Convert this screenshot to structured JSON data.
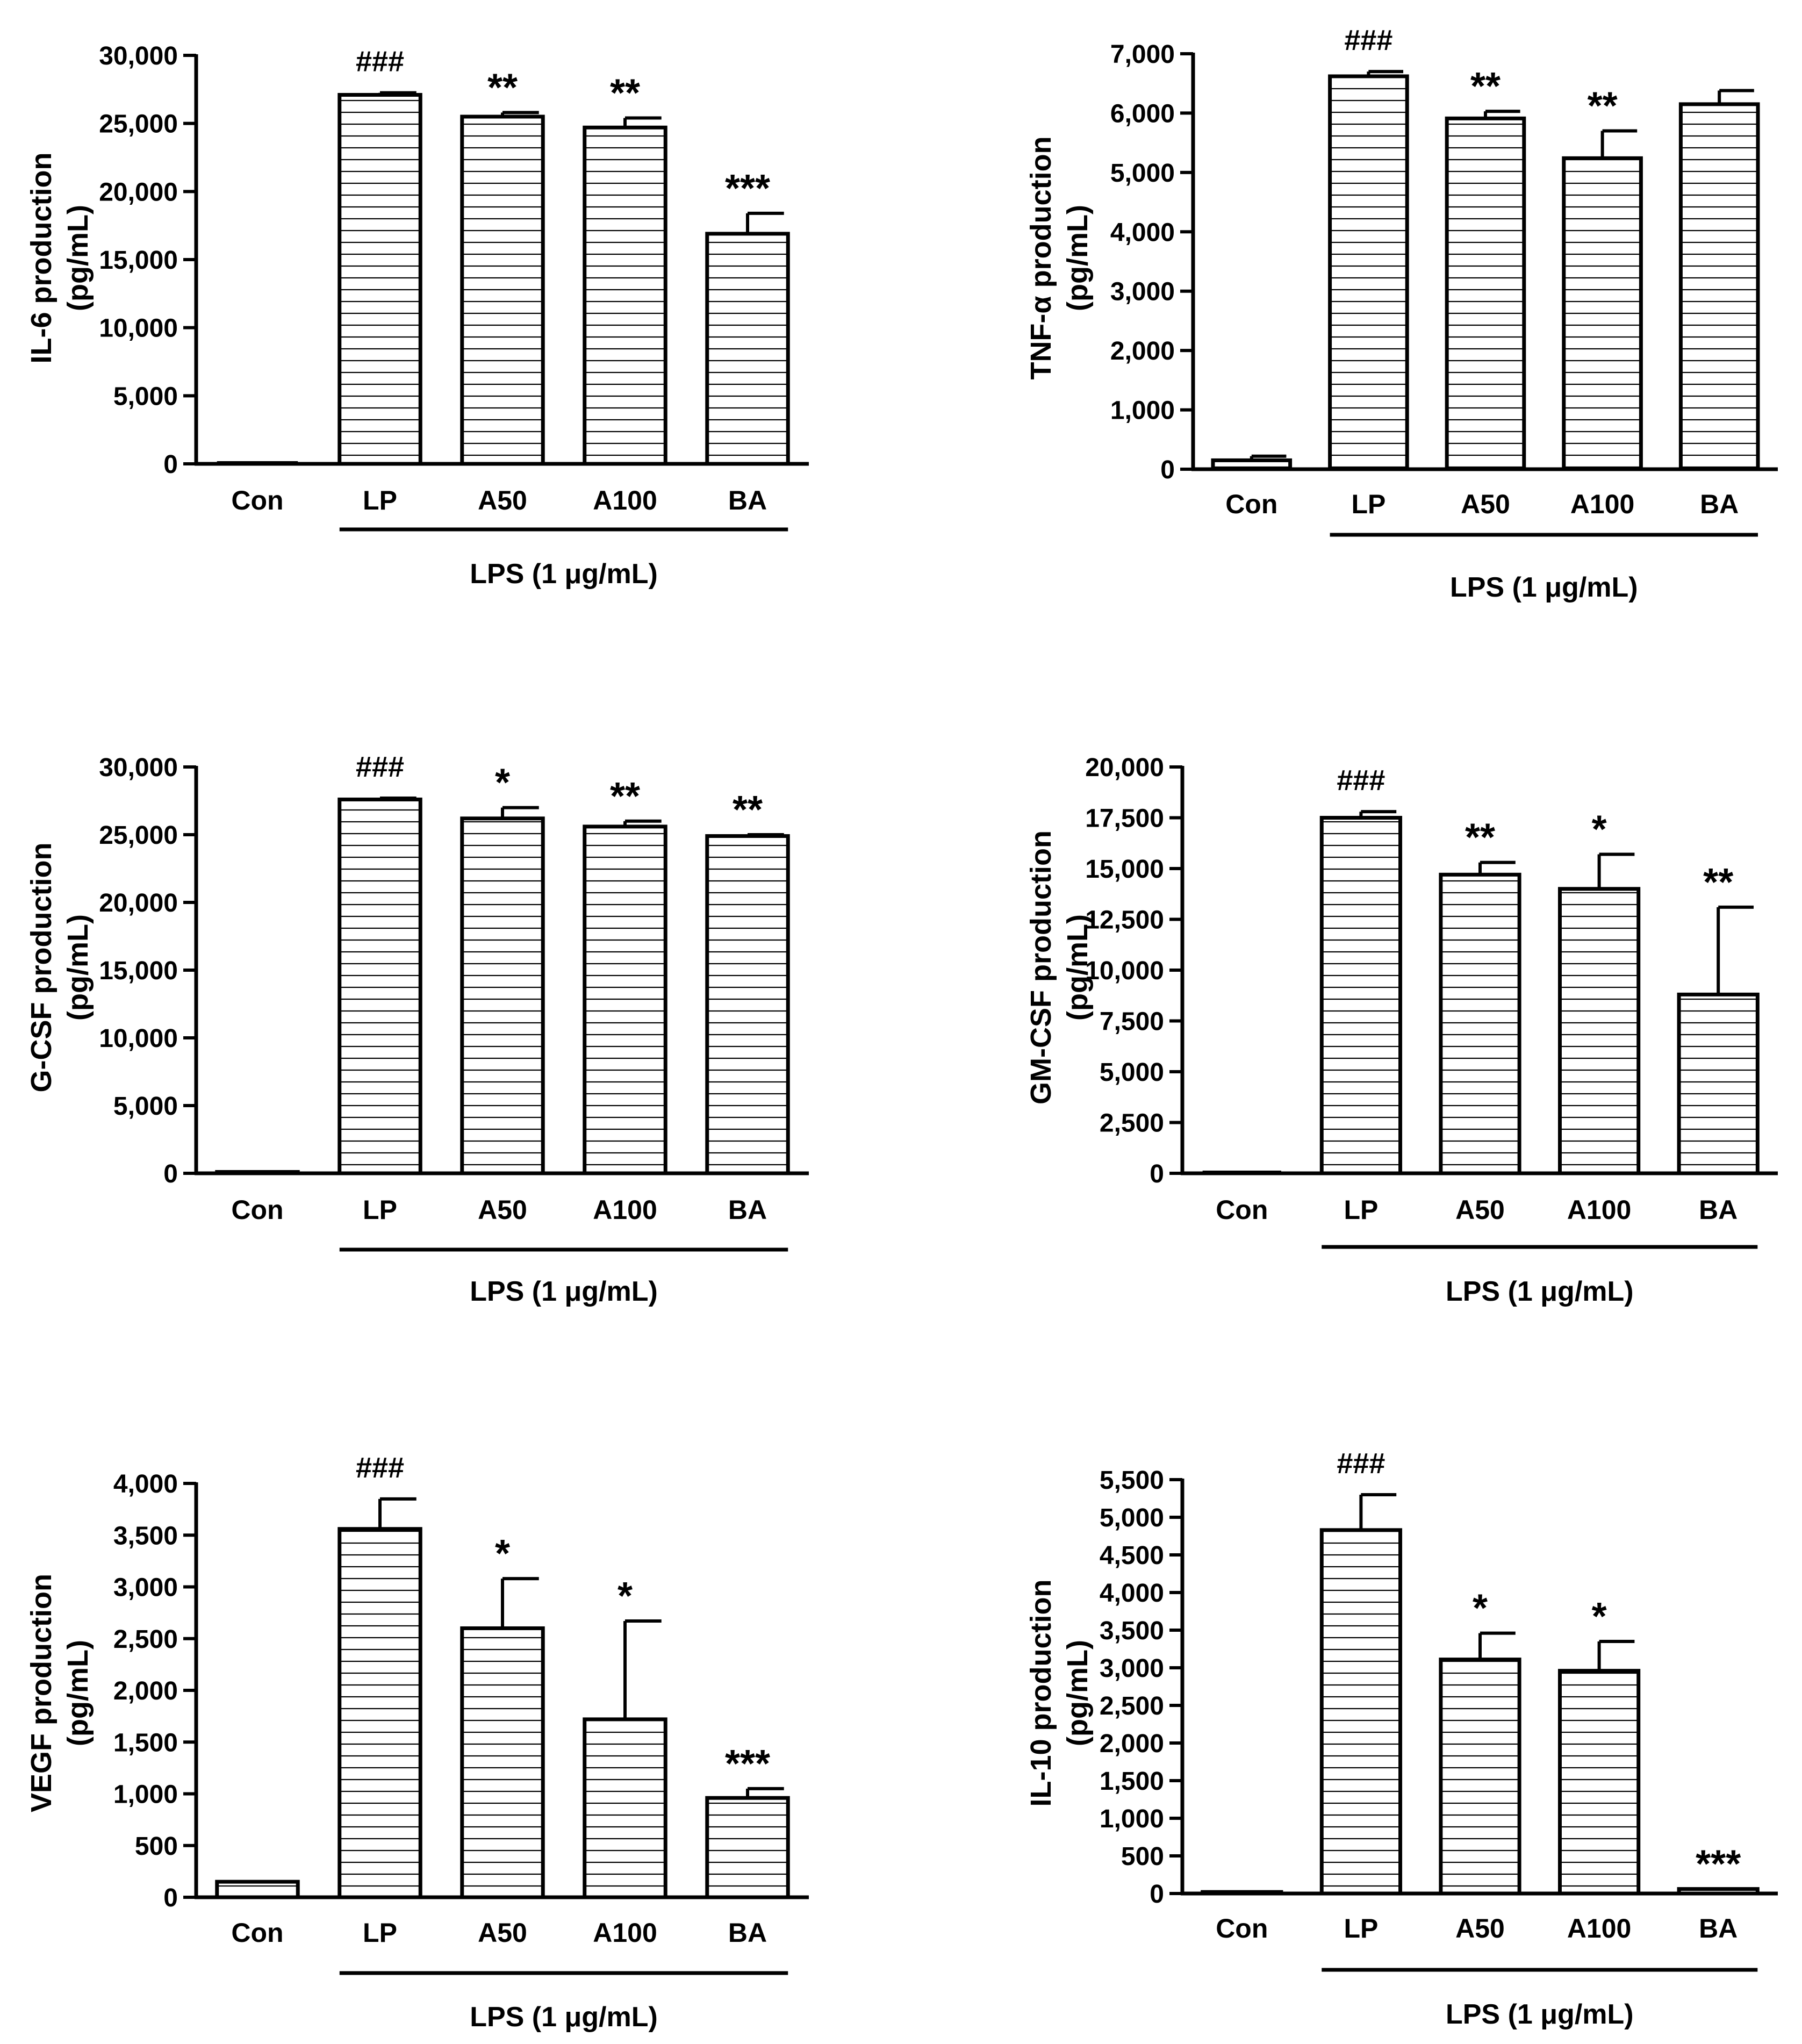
{
  "figure": {
    "colors": {
      "bar_fill": "#ffffff",
      "stripe": "#000000",
      "axis": "#000000"
    }
  },
  "chart_data": [
    {
      "type": "bar",
      "ylabel_line1": "IL-6 production",
      "ylabel_line2": "(pg/mL)",
      "categories": [
        "Con",
        "LP",
        "A50",
        "A100",
        "BA"
      ],
      "values": [
        0,
        27100,
        25500,
        24700,
        16900
      ],
      "errors": [
        0,
        150,
        300,
        700,
        1500
      ],
      "significance": [
        "",
        "###",
        "**",
        "**",
        "***"
      ],
      "yticks": [
        0,
        5000,
        10000,
        15000,
        20000,
        25000,
        30000
      ],
      "ytick_labels": [
        "0",
        "5,000",
        "10,000",
        "15,000",
        "20,000",
        "25,000",
        "30,000"
      ],
      "ylim": [
        0,
        30000
      ],
      "group_label": "LPS (1 μg/mL)"
    },
    {
      "type": "bar",
      "ylabel_line1": "TNF-α production",
      "ylabel_line2": "(pg/mL)",
      "categories": [
        "Con",
        "LP",
        "A50",
        "A100",
        "BA"
      ],
      "values": [
        150,
        6620,
        5910,
        5240,
        6150
      ],
      "errors": [
        70,
        80,
        120,
        460,
        230
      ],
      "significance": [
        "",
        "###",
        "**",
        "**",
        ""
      ],
      "yticks": [
        0,
        1000,
        2000,
        3000,
        4000,
        5000,
        6000,
        7000
      ],
      "ytick_labels": [
        "0",
        "1,000",
        "2,000",
        "3,000",
        "4,000",
        "5,000",
        "6,000",
        "7,000"
      ],
      "ylim": [
        0,
        7000
      ],
      "group_label": "LPS (1 μg/mL)"
    },
    {
      "type": "bar",
      "ylabel_line1": "G-CSF production",
      "ylabel_line2": "(pg/mL)",
      "categories": [
        "Con",
        "LP",
        "A50",
        "A100",
        "BA"
      ],
      "values": [
        100,
        27600,
        26200,
        25600,
        24900
      ],
      "errors": [
        0,
        100,
        800,
        400,
        100
      ],
      "significance": [
        "",
        "###",
        "*",
        "**",
        "**"
      ],
      "yticks": [
        0,
        5000,
        10000,
        15000,
        20000,
        25000,
        30000
      ],
      "ytick_labels": [
        "0",
        "5,000",
        "10,000",
        "15,000",
        "20,000",
        "25,000",
        "30,000"
      ],
      "ylim": [
        0,
        30000
      ],
      "group_label": "LPS (1 μg/mL)"
    },
    {
      "type": "bar",
      "ylabel_line1": "GM-CSF production",
      "ylabel_line2": "(pg/mL)",
      "categories": [
        "Con",
        "LP",
        "A50",
        "A100",
        "BA"
      ],
      "values": [
        0,
        17500,
        14700,
        14000,
        8800
      ],
      "errors": [
        0,
        300,
        600,
        1700,
        4300
      ],
      "significance": [
        "",
        "###",
        "**",
        "*",
        "**"
      ],
      "yticks": [
        0,
        2500,
        5000,
        7500,
        10000,
        12500,
        15000,
        17500,
        20000
      ],
      "ytick_labels": [
        "0",
        "2,500",
        "5,000",
        "7,500",
        "10,000",
        "12,500",
        "15,000",
        "17,500",
        "20,000"
      ],
      "ylim": [
        0,
        20000
      ],
      "group_label": "LPS (1 μg/mL)"
    },
    {
      "type": "bar",
      "ylabel_line1": "VEGF production",
      "ylabel_line2": "(pg/mL)",
      "categories": [
        "Con",
        "LP",
        "A50",
        "A100",
        "BA"
      ],
      "values": [
        150,
        3560,
        2600,
        1720,
        960
      ],
      "errors": [
        0,
        290,
        480,
        950,
        90
      ],
      "significance": [
        "",
        "###",
        "*",
        "*",
        "***"
      ],
      "yticks": [
        0,
        500,
        1000,
        1500,
        2000,
        2500,
        3000,
        3500,
        4000
      ],
      "ytick_labels": [
        "0",
        "500",
        "1,000",
        "1,500",
        "2,000",
        "2,500",
        "3,000",
        "3,500",
        "4,000"
      ],
      "ylim": [
        0,
        4000
      ],
      "group_label": "LPS (1 μg/mL)"
    },
    {
      "type": "bar",
      "ylabel_line1": "IL-10 production",
      "ylabel_line2": "(pg/mL)",
      "categories": [
        "Con",
        "LP",
        "A50",
        "A100",
        "BA"
      ],
      "values": [
        20,
        4830,
        3110,
        2960,
        60
      ],
      "errors": [
        0,
        470,
        350,
        390,
        0
      ],
      "significance": [
        "",
        "###",
        "*",
        "*",
        "***"
      ],
      "yticks": [
        0,
        500,
        1000,
        1500,
        2000,
        2500,
        3000,
        3500,
        4000,
        4500,
        5000,
        5500
      ],
      "ytick_labels": [
        "0",
        "500",
        "1,000",
        "1,500",
        "2,000",
        "2,500",
        "3,000",
        "3,500",
        "4,000",
        "4,500",
        "5,000",
        "5,500"
      ],
      "ylim": [
        0,
        5500
      ],
      "group_label": "LPS (1 μg/mL)"
    }
  ]
}
